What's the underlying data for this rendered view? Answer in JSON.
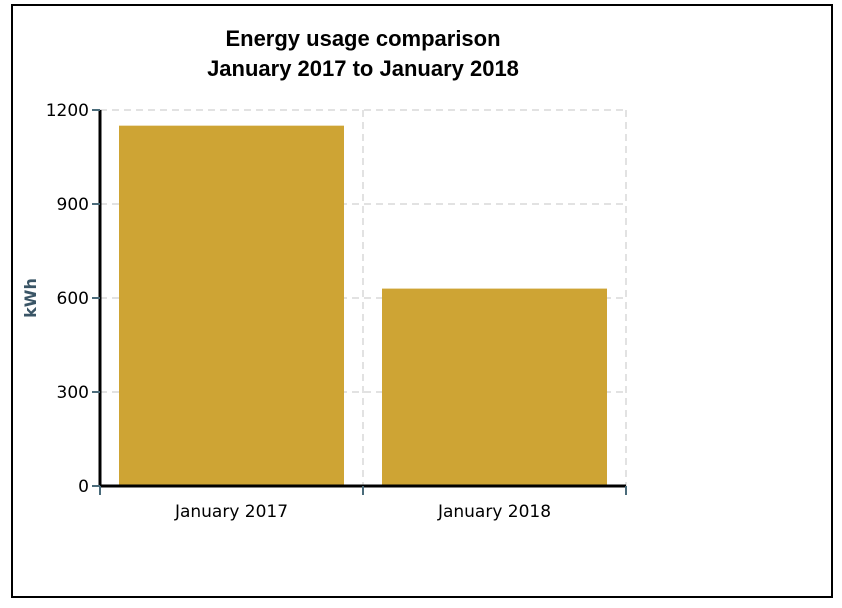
{
  "chart_data": {
    "type": "bar",
    "title": [
      "Energy usage comparison",
      "January 2017 to January 2018"
    ],
    "xlabel": "",
    "ylabel": "kWh",
    "categories": [
      "January 2017",
      "January 2018"
    ],
    "values": [
      1150,
      630
    ],
    "ylim": [
      0,
      1200
    ],
    "yticks": [
      0,
      300,
      600,
      900,
      1200
    ],
    "grid": true,
    "legend": "none",
    "colors": {
      "bar": "#cea434",
      "axis": "#000000",
      "tick": "#4a6b7a",
      "grid": "#d9d9d9",
      "ylabel": "#3a5566"
    }
  }
}
